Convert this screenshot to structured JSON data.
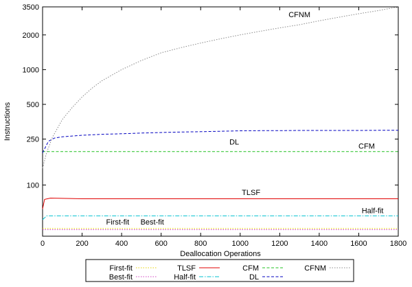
{
  "chart_data": {
    "type": "line",
    "title": "",
    "xlabel": "Deallocation Operations",
    "ylabel": "Instructions",
    "xlim": [
      0,
      1800
    ],
    "ylim": [
      36,
      3500
    ],
    "y_scale": "log",
    "grid": false,
    "legend_position": "bottom",
    "x_ticks": [
      "0",
      "200",
      "400",
      "600",
      "800",
      "1000",
      "1200",
      "1400",
      "1600",
      "1800"
    ],
    "x_tick_values": [
      0,
      200,
      400,
      600,
      800,
      1000,
      1200,
      1400,
      1600,
      1800
    ],
    "y_ticks": [
      "100",
      "250",
      "500",
      "1000",
      "2000",
      "3500"
    ],
    "y_tick_values": [
      100,
      250,
      500,
      1000,
      2000,
      3500
    ],
    "series": [
      {
        "name": "First-fit",
        "color": "#e6d200",
        "style": "dotted",
        "x": [
          0,
          1800
        ],
        "y": [
          42,
          42
        ]
      },
      {
        "name": "Best-fit",
        "color": "#d040c0",
        "style": "dotted",
        "x": [
          0,
          1800
        ],
        "y": [
          41,
          41
        ]
      },
      {
        "name": "TLSF",
        "color": "#e00000",
        "style": "solid",
        "x": [
          0,
          10,
          40,
          200,
          1800
        ],
        "y": [
          62,
          75,
          77,
          76,
          76
        ]
      },
      {
        "name": "Half-fit",
        "color": "#00c0d0",
        "style": "dashdot",
        "x": [
          0,
          20,
          1800
        ],
        "y": [
          50,
          54,
          54
        ]
      },
      {
        "name": "CFM",
        "color": "#20c020",
        "style": "dashed",
        "x": [
          0,
          1800
        ],
        "y": [
          195,
          195
        ]
      },
      {
        "name": "DL",
        "color": "#0000c0",
        "style": "dashed",
        "x": [
          0,
          30,
          60,
          100,
          200,
          300,
          400,
          500,
          600,
          700,
          800,
          900,
          1000,
          1100,
          1200,
          1300,
          1400,
          1500,
          1600,
          1700,
          1800
        ],
        "y": [
          190,
          240,
          255,
          262,
          270,
          275,
          278,
          282,
          285,
          288,
          290,
          292,
          295,
          296,
          296,
          297,
          297,
          297,
          297,
          298,
          298
        ]
      },
      {
        "name": "CFNM",
        "color": "#888888",
        "style": "dotted",
        "x": [
          0,
          20,
          50,
          100,
          150,
          200,
          250,
          300,
          400,
          500,
          600,
          700,
          800,
          900,
          1000,
          1100,
          1200,
          1300,
          1400,
          1500,
          1600,
          1700,
          1780,
          1800
        ],
        "y": [
          140,
          190,
          260,
          370,
          470,
          580,
          690,
          800,
          1000,
          1200,
          1400,
          1550,
          1700,
          1850,
          2000,
          2150,
          2300,
          2450,
          2650,
          2850,
          3050,
          3250,
          3450,
          3450
        ]
      }
    ],
    "annotations": [
      {
        "text": "CFNM",
        "x": 1300,
        "y": 2850
      },
      {
        "text": "DL",
        "x": 970,
        "y": 225
      },
      {
        "text": "CFM",
        "x": 1640,
        "y": 206
      },
      {
        "text": "TLSF",
        "x": 1055,
        "y": 82
      },
      {
        "text": "Half-fit",
        "x": 1670,
        "y": 57
      },
      {
        "text": "First-fit",
        "x": 380,
        "y": 45.5
      },
      {
        "text": "Best-fit",
        "x": 555,
        "y": 45.5
      }
    ]
  }
}
